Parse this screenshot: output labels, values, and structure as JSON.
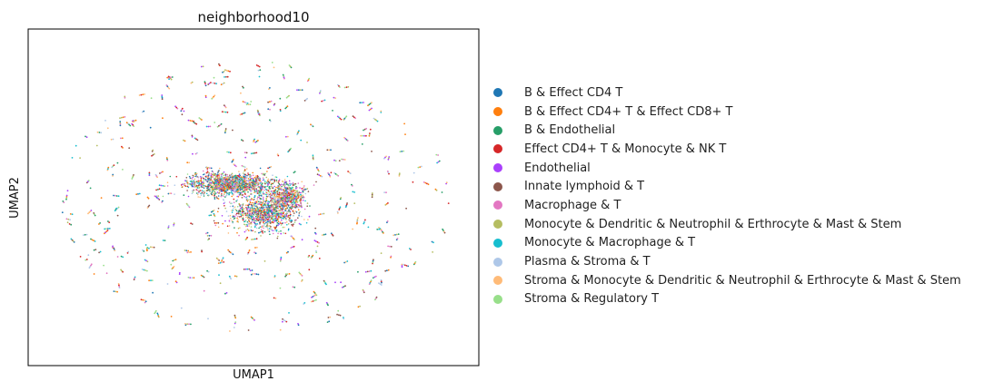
{
  "chart_data": {
    "type": "scatter",
    "title": "neighborhood10",
    "xlabel": "UMAP1",
    "ylabel": "UMAP2",
    "grid": false,
    "ticks": false,
    "legend_position": "right",
    "series": [
      {
        "name": "B & Effect CD4 T",
        "color": "#1f77b4"
      },
      {
        "name": "B & Effect CD4+ T & Effect CD8+ T",
        "color": "#ff7f0e"
      },
      {
        "name": "B & Endothelial",
        "color": "#279e68"
      },
      {
        "name": "Effect CD4+ T & Monocyte & NK T",
        "color": "#d62728"
      },
      {
        "name": "Endothelial",
        "color": "#aa40fc"
      },
      {
        "name": "Innate lymphoid & T",
        "color": "#8c564b"
      },
      {
        "name": "Macrophage & T",
        "color": "#e377c2"
      },
      {
        "name": "Monocyte & Dendritic & Neutrophil & Erthrocyte & Mast & Stem",
        "color": "#b5bd61"
      },
      {
        "name": "Monocyte & Macrophage & T",
        "color": "#17becf"
      },
      {
        "name": "Plasma & Stroma & T",
        "color": "#aec7e8"
      },
      {
        "name": "Stroma & Monocyte & Dendritic & Neutrophil & Erthrocyte & Mast & Stem",
        "color": "#ffbb78"
      },
      {
        "name": "Stroma & Regulatory T",
        "color": "#98df8a"
      }
    ],
    "clusters": [
      {
        "x": -0.1,
        "y": 0.08,
        "sx": 0.1,
        "sy": 0.035
      },
      {
        "x": 0.05,
        "y": -0.1,
        "sx": 0.07,
        "sy": 0.05
      },
      {
        "x": 0.16,
        "y": 0.0,
        "sx": 0.04,
        "sy": 0.04
      }
    ]
  }
}
